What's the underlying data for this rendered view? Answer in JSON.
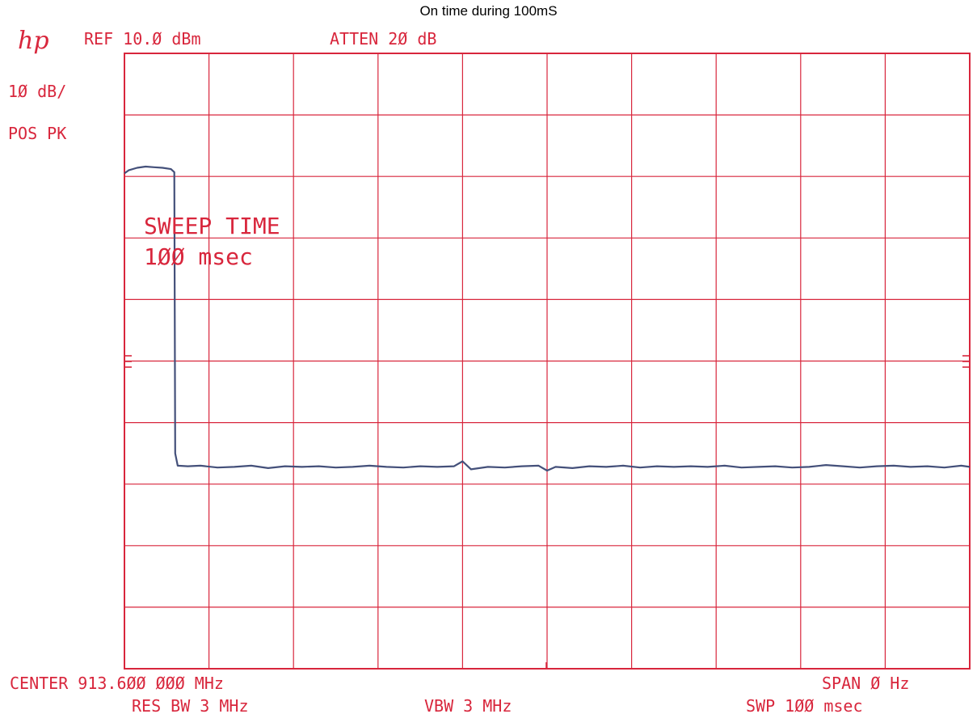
{
  "figure_title": "On time during 100mS",
  "logo_text": "hp",
  "header": {
    "ref": "REF  10.Ø dBm",
    "atten": "ATTEN 2Ø dB",
    "scale": "1Ø dB/",
    "detector": "POS PK"
  },
  "annotation": {
    "line1": "SWEEP TIME",
    "line2": "1ØØ msec"
  },
  "footer": {
    "center": "CENTER 913.6ØØ ØØØ MHz",
    "span": "SPAN Ø  Hz",
    "rbw": "RES BW 3 MHz",
    "vbw": "VBW 3 MHz",
    "swp": "SWP 1ØØ msec"
  },
  "colors": {
    "grid": "#d8263c",
    "text": "#d8263c",
    "trace": "#44507a"
  },
  "chart_data": {
    "type": "line",
    "x_unit": "ms",
    "y_unit": "dBm",
    "xlim": [
      0,
      100
    ],
    "ylim": [
      -90,
      10
    ],
    "x_divisions": 10,
    "y_divisions": 10,
    "series": [
      {
        "points": [
          [
            0,
            -9.5
          ],
          [
            0.5,
            -9.0
          ],
          [
            1.5,
            -8.6
          ],
          [
            2.5,
            -8.4
          ],
          [
            3.5,
            -8.5
          ],
          [
            4.5,
            -8.6
          ],
          [
            5.5,
            -8.8
          ],
          [
            5.9,
            -9.3
          ],
          [
            6.0,
            -55.0
          ],
          [
            6.3,
            -57.0
          ],
          [
            7.5,
            -57.1
          ],
          [
            9,
            -57.0
          ],
          [
            11,
            -57.3
          ],
          [
            13,
            -57.2
          ],
          [
            15,
            -57.0
          ],
          [
            17,
            -57.4
          ],
          [
            19,
            -57.1
          ],
          [
            21,
            -57.2
          ],
          [
            23,
            -57.1
          ],
          [
            25,
            -57.3
          ],
          [
            27,
            -57.2
          ],
          [
            29,
            -57.0
          ],
          [
            31,
            -57.2
          ],
          [
            33,
            -57.3
          ],
          [
            35,
            -57.1
          ],
          [
            37,
            -57.2
          ],
          [
            39,
            -57.1
          ],
          [
            40,
            -56.3
          ],
          [
            41,
            -57.6
          ],
          [
            43,
            -57.2
          ],
          [
            45,
            -57.3
          ],
          [
            47,
            -57.1
          ],
          [
            49,
            -57.0
          ],
          [
            50,
            -57.8
          ],
          [
            51,
            -57.2
          ],
          [
            53,
            -57.4
          ],
          [
            55,
            -57.1
          ],
          [
            57,
            -57.2
          ],
          [
            59,
            -57.0
          ],
          [
            61,
            -57.3
          ],
          [
            63,
            -57.1
          ],
          [
            65,
            -57.2
          ],
          [
            67,
            -57.1
          ],
          [
            69,
            -57.2
          ],
          [
            71,
            -57.0
          ],
          [
            73,
            -57.3
          ],
          [
            75,
            -57.2
          ],
          [
            77,
            -57.1
          ],
          [
            79,
            -57.3
          ],
          [
            81,
            -57.2
          ],
          [
            83,
            -56.9
          ],
          [
            85,
            -57.1
          ],
          [
            87,
            -57.3
          ],
          [
            89,
            -57.1
          ],
          [
            91,
            -57.0
          ],
          [
            93,
            -57.2
          ],
          [
            95,
            -57.1
          ],
          [
            97,
            -57.3
          ],
          [
            99,
            -57.0
          ],
          [
            100,
            -57.2
          ]
        ]
      }
    ],
    "grid": true
  }
}
